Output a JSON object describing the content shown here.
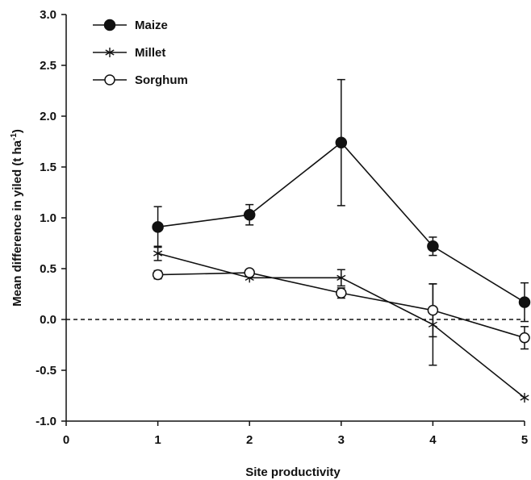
{
  "chart_data": {
    "type": "line",
    "xlabel": "Site productivity",
    "ylabel": "Mean difference in yiled (t ha",
    "ylabel_sup": "-1",
    "ylabel_close": ")",
    "xlim": [
      0,
      5
    ],
    "ylim": [
      -1.0,
      3.0
    ],
    "x_ticks": [
      "0",
      "1",
      "2",
      "3",
      "4",
      "5"
    ],
    "y_ticks": [
      "-1.0",
      "-0.5",
      "0.0",
      "0.5",
      "1.0",
      "1.5",
      "2.0",
      "2.5",
      "3.0"
    ],
    "reference_line": 0.0,
    "grid": false,
    "legend_position": "top-left",
    "series": [
      {
        "name": "Maize",
        "marker": "filled-circle",
        "x": [
          1,
          2,
          3,
          4,
          5
        ],
        "y": [
          0.91,
          1.03,
          1.74,
          0.72,
          0.17
        ],
        "err": [
          0.2,
          0.1,
          0.62,
          0.09,
          0.19
        ]
      },
      {
        "name": "Millet",
        "marker": "asterisk",
        "x": [
          1,
          2,
          3,
          4,
          5
        ],
        "y": [
          0.65,
          0.41,
          0.41,
          -0.05,
          -0.77
        ],
        "err": [
          0.07,
          0.0,
          0.08,
          0.4,
          0.0
        ]
      },
      {
        "name": "Sorghum",
        "marker": "open-circle",
        "x": [
          1,
          2,
          3,
          4,
          5
        ],
        "y": [
          0.44,
          0.46,
          0.26,
          0.09,
          -0.18
        ],
        "err": [
          0.04,
          0.03,
          0.05,
          0.26,
          0.11
        ]
      }
    ]
  }
}
